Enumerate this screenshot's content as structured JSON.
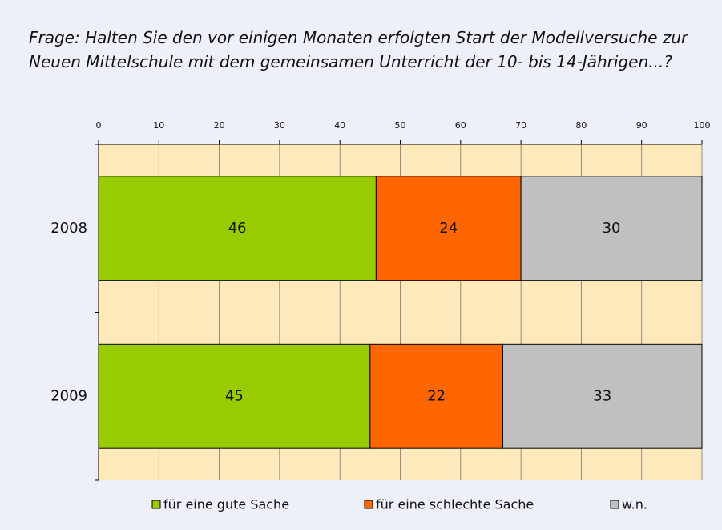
{
  "chart_data": {
    "type": "stacked-bar-horizontal",
    "title": "Frage: Halten Sie den vor einigen Monaten erfolgten Start der Modellversuche zur Neuen Mittelschule mit dem gemeinsamen Unterricht der 10- bis 14-Jährigen...?",
    "categories": [
      "2008",
      "2009"
    ],
    "series": [
      {
        "name": "für eine gute Sache",
        "color": "#99cc00",
        "values": [
          46,
          45
        ]
      },
      {
        "name": "für eine schlechte Sache",
        "color": "#ff6600",
        "values": [
          24,
          22
        ]
      },
      {
        "name": "w.n.",
        "color": "#c0c0c0",
        "values": [
          30,
          33
        ]
      }
    ],
    "xlim": [
      0,
      100
    ],
    "xticks": [
      0,
      10,
      20,
      30,
      40,
      50,
      60,
      70,
      80,
      90,
      100
    ],
    "grid": true
  }
}
